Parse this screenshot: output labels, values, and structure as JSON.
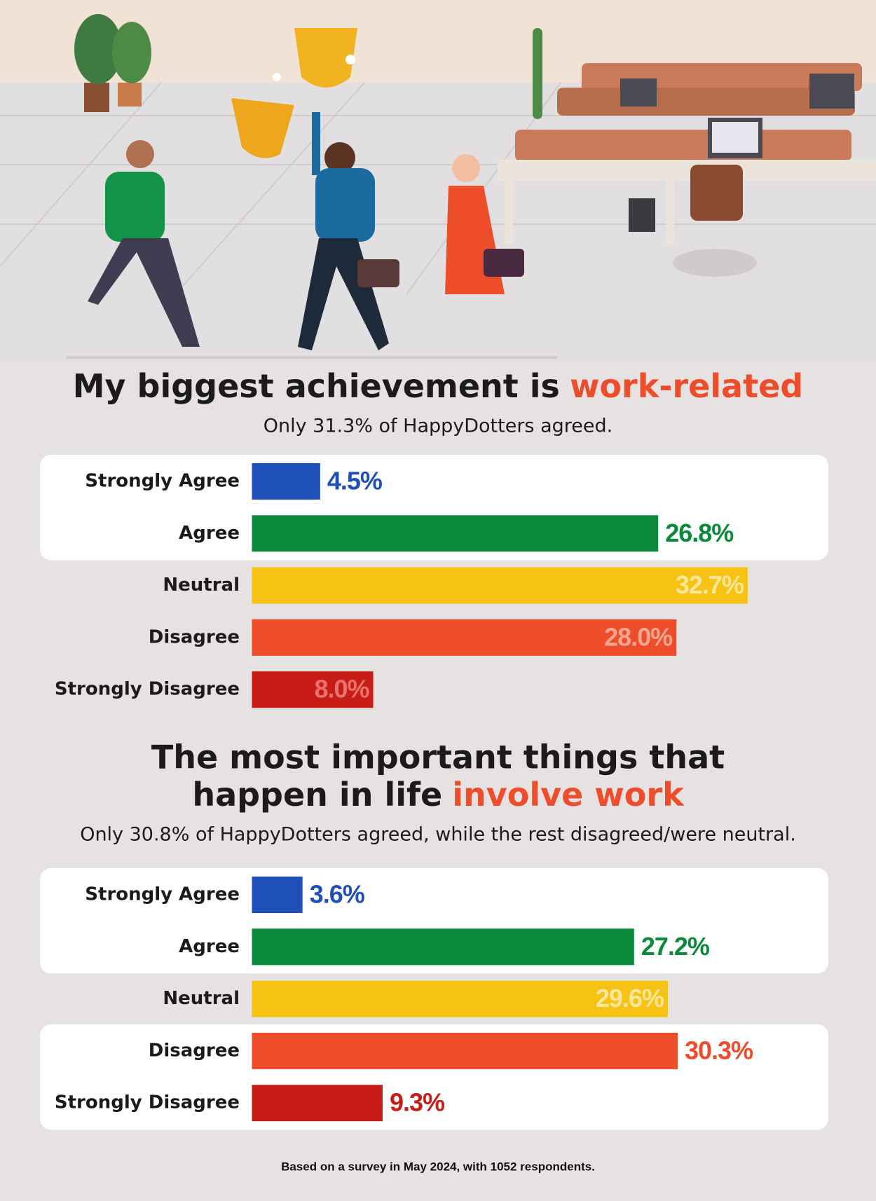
{
  "chart_data": [
    {
      "type": "bar",
      "orientation": "horizontal",
      "title": [
        "My biggest achievement is",
        "work-related"
      ],
      "subtitle": "Only 31.3% of HappyDotters agreed.",
      "categories": [
        "Strongly Agree",
        "Agree",
        "Neutral",
        "Disagree",
        "Strongly Disagree"
      ],
      "values": [
        4.5,
        26.8,
        32.7,
        28.0,
        8.0
      ],
      "value_labels": [
        "4.5%",
        "26.8%",
        "32.7%",
        "28.0%",
        "8.0%"
      ],
      "colors": [
        "#1f4fb8",
        "#0a8a3a",
        "#f6c315",
        "#ee4d2b",
        "#c81c16"
      ],
      "label_inside": [
        false,
        false,
        true,
        true,
        true
      ],
      "label_colors": [
        "#1f4fb8",
        "#0a8a3a",
        "#fbe79a",
        "#f6a590",
        "#e9726c"
      ],
      "panels": [
        [
          0,
          1
        ]
      ],
      "xlim": [
        0,
        38
      ]
    },
    {
      "type": "bar",
      "orientation": "horizontal",
      "title": [
        "The most important things that",
        "happen in life",
        "involve work"
      ],
      "subtitle": "Only 30.8% of HappyDotters agreed, while the rest disagreed/were neutral.",
      "categories": [
        "Strongly Agree",
        "Agree",
        "Neutral",
        "Disagree",
        "Strongly Disagree"
      ],
      "values": [
        3.6,
        27.2,
        29.6,
        30.3,
        9.3
      ],
      "value_labels": [
        "3.6%",
        "27.2%",
        "29.6%",
        "30.3%",
        "9.3%"
      ],
      "colors": [
        "#1f4fb8",
        "#0a8a3a",
        "#f6c315",
        "#ee4d2b",
        "#c81c16"
      ],
      "label_inside": [
        false,
        false,
        true,
        false,
        false
      ],
      "label_colors": [
        "#1f4fb8",
        "#0a8a3a",
        "#fbe79a",
        "#ee4d2b",
        "#c81c16"
      ],
      "panels": [
        [
          0,
          1
        ],
        [
          3,
          4
        ]
      ],
      "xlim": [
        0,
        41
      ]
    }
  ],
  "footer": "Based on a survey in May 2024, with 1052 respondents."
}
